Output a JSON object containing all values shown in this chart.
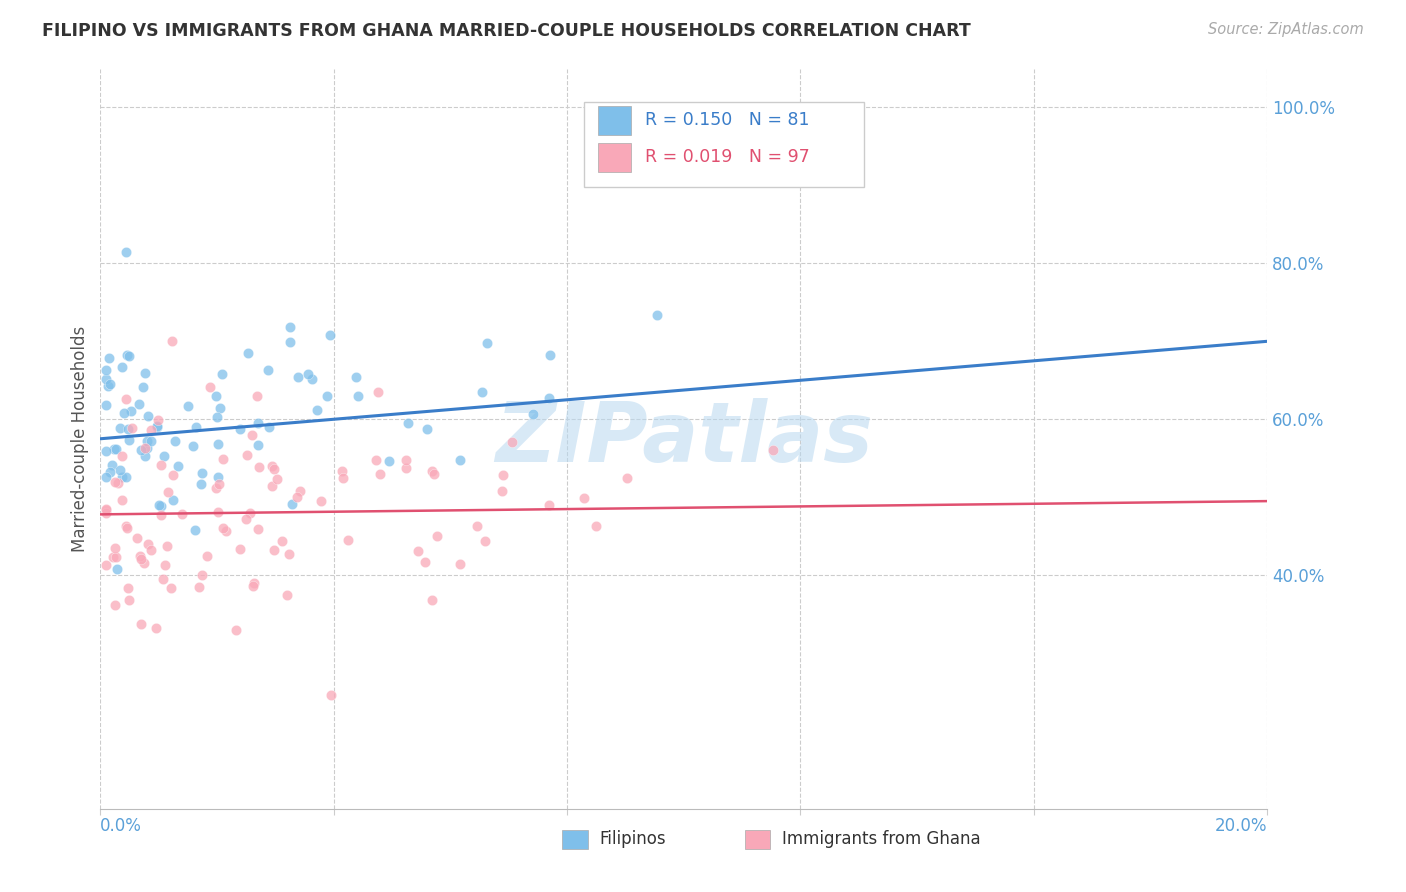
{
  "title": "FILIPINO VS IMMIGRANTS FROM GHANA MARRIED-COUPLE HOUSEHOLDS CORRELATION CHART",
  "source": "Source: ZipAtlas.com",
  "ylabel": "Married-couple Households",
  "xlim": [
    0.0,
    0.2
  ],
  "ylim": [
    0.1,
    1.05
  ],
  "yticks": [
    0.4,
    0.6,
    0.8,
    1.0
  ],
  "ytick_labels": [
    "40.0%",
    "60.0%",
    "80.0%",
    "100.0%"
  ],
  "filipinos_color": "#7fbfea",
  "ghana_color": "#f9a8b8",
  "line1_color": "#3a7dc9",
  "line2_color": "#e05070",
  "watermark": "ZIPatlas",
  "background_color": "#ffffff",
  "grid_color": "#cccccc",
  "title_color": "#333333",
  "axis_label_color": "#5aa0d8",
  "legend_r1": "R = 0.150",
  "legend_n1": "N = 81",
  "legend_r2": "R = 0.019",
  "legend_n2": "N = 97",
  "legend_label1": "Filipinos",
  "legend_label2": "Immigrants from Ghana",
  "source_color": "#aaaaaa"
}
